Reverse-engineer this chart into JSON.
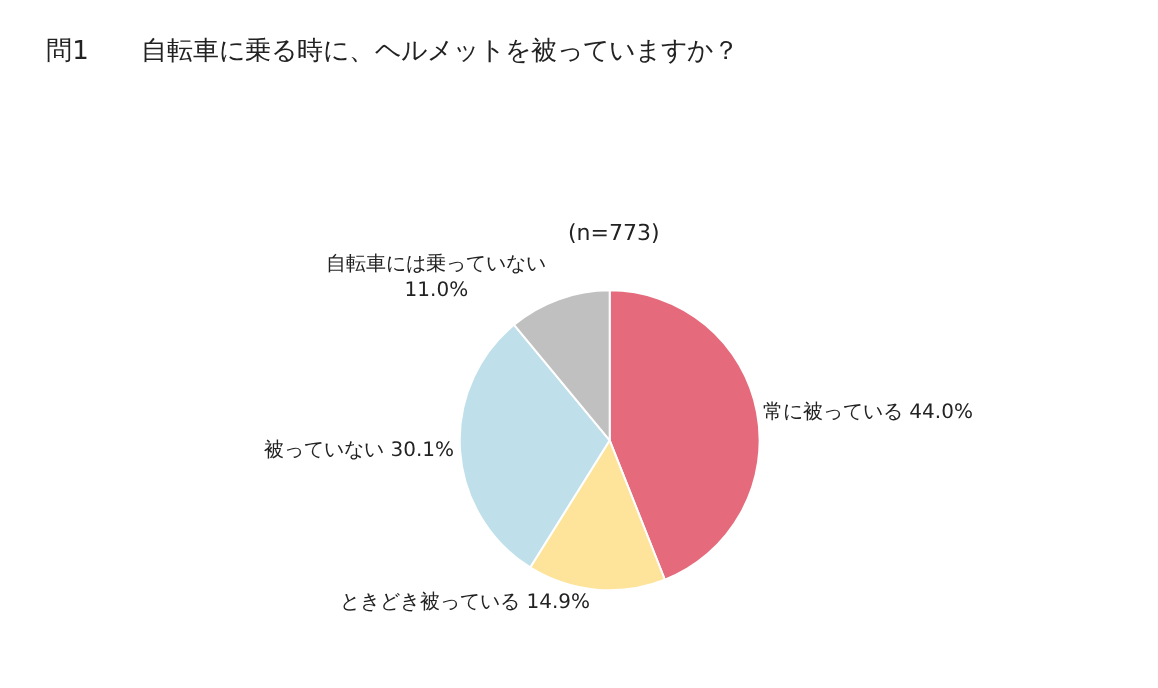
{
  "chart_data": {
    "type": "pie",
    "title": "問1　　自転車に乗る時に、ヘルメットを被っていますか？",
    "categories": [
      "常に被っている",
      "ときどき被っている",
      "被っていない",
      "自転車には乗っていない"
    ],
    "values": [
      44.0,
      14.9,
      30.1,
      11.0
    ],
    "value_labels": [
      "44.0%",
      "14.9%",
      "30.1%",
      "11.0%"
    ],
    "colors": [
      "#e56b7c",
      "#fde49a",
      "#bfe0ea",
      "#c0c0c0"
    ],
    "annotations": [
      "(n=773)"
    ]
  }
}
